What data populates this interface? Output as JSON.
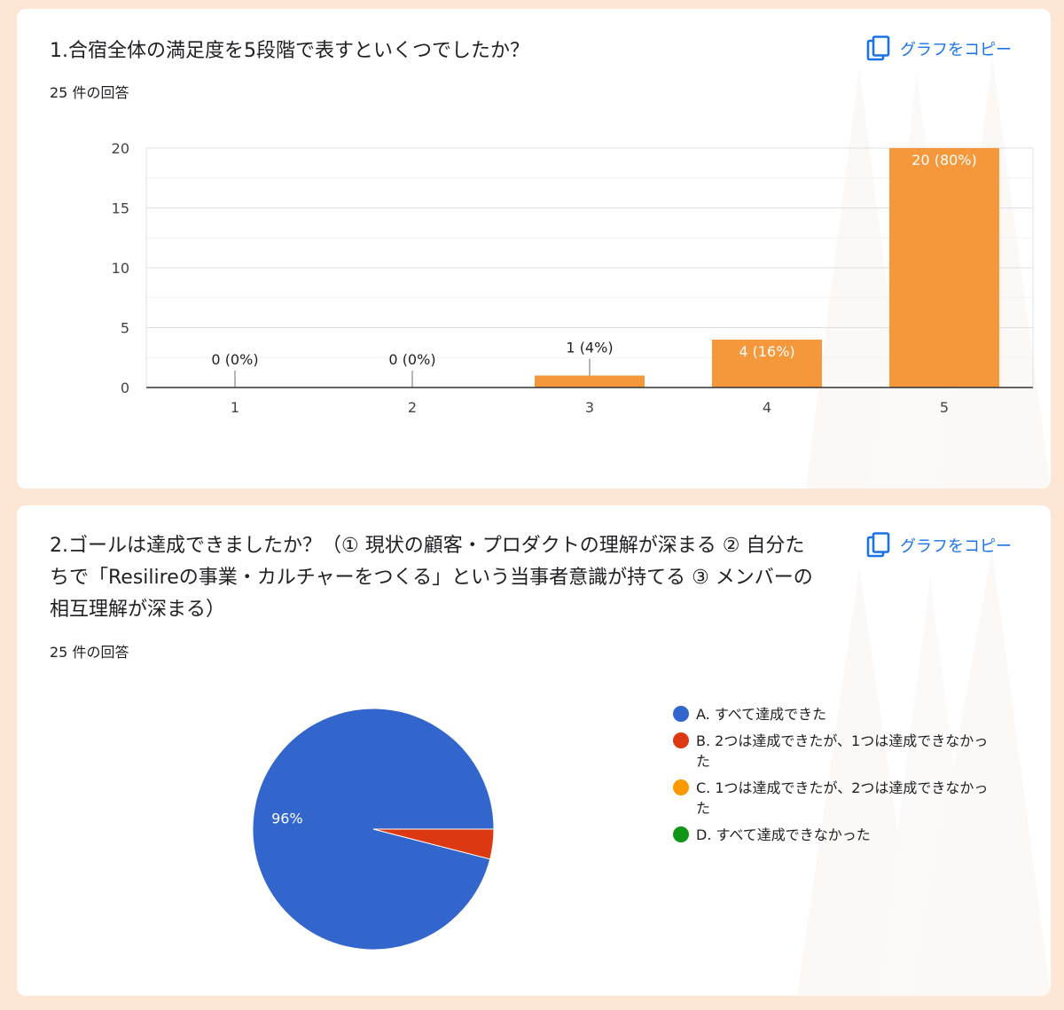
{
  "copy_label": "グラフをコピー",
  "colors": {
    "bar": "#f4983b",
    "blue": "#3366cc",
    "red": "#dc3912",
    "orange": "#ff9900",
    "green": "#109618",
    "link": "#1a73e8"
  },
  "icons": {
    "copy": "copy-icon"
  },
  "q1": {
    "title": "1.合宿全体の満足度を5段階で表すといくつでしたか？",
    "responses": "25 件の回答"
  },
  "q2": {
    "title": "2.ゴールは達成できましたか？（① 現状の顧客・プロダクトの理解が深まる ② 自分たちで「Resilireの事業・カルチャーをつくる」という当事者意識が持てる ③ メンバーの相互理解が深まる）",
    "responses": "25 件の回答"
  },
  "chart_data": [
    {
      "type": "bar",
      "categories": [
        "1",
        "2",
        "3",
        "4",
        "5"
      ],
      "values": [
        0,
        0,
        1,
        4,
        20
      ],
      "data_labels": [
        "0 (0%)",
        "0 (0%)",
        "1 (4%)",
        "4 (16%)",
        "20 (80%)"
      ],
      "yticks": [
        "0",
        "5",
        "10",
        "15",
        "20"
      ],
      "ylim": [
        0,
        20
      ],
      "grid": true,
      "color": "#f4983b"
    },
    {
      "type": "pie",
      "labels": [
        "A. すべて達成できた",
        "B. 2つは達成できたが、1つは達成できなかった",
        "C. 1つは達成できたが、2つは達成できなかった",
        "D. すべて達成できなかった"
      ],
      "values": [
        24,
        1,
        0,
        0
      ],
      "slice_labels": [
        "96%",
        "",
        "",
        ""
      ],
      "colors": [
        "#3366cc",
        "#dc3912",
        "#ff9900",
        "#109618"
      ],
      "legend": "right"
    }
  ]
}
